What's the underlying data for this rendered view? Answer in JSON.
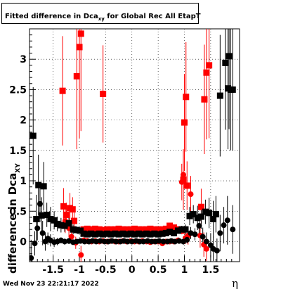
{
  "title": {
    "main": "Fitted difference in Dca",
    "sub": "xy",
    "rest": " for Global Rec All EtapT"
  },
  "timestamp": "Wed Nov 23 22:21:17 2022",
  "xaxis_label": "η",
  "yaxis_label": {
    "main": "difference in Dca",
    "sub": "XY"
  },
  "colors": {
    "red": "#ff0000",
    "black": "#000000",
    "grid": "#000000"
  },
  "chart_data": {
    "type": "scatter",
    "xlim": [
      -1.95,
      2.05
    ],
    "ylim": [
      -0.33,
      3.5
    ],
    "grid": true,
    "x_ticks": [
      "-1.5",
      "-1",
      "-0.5",
      "0",
      "0.5",
      "1",
      "1.5"
    ],
    "x_tick_values": [
      -1.5,
      -1,
      -0.5,
      0,
      0.5,
      1,
      1.5
    ],
    "y_ticks": [
      "0",
      "0.5",
      "1",
      "1.5",
      "2",
      "2.5",
      "3"
    ],
    "y_tick_values": [
      0,
      0.5,
      1,
      1.5,
      2,
      2.5,
      3
    ],
    "series": [
      {
        "color": "red",
        "marker": "square",
        "points": [
          [
            -1.32,
            2.48,
            0.9
          ],
          [
            -1.3,
            0.58,
            0.3
          ],
          [
            -1.25,
            0.44,
            0.2
          ],
          [
            -1.18,
            0.55,
            0.25
          ],
          [
            -1.13,
            0.53,
            0.2
          ],
          [
            -1.1,
            0.34,
            0.15
          ],
          [
            -1.05,
            2.72,
            1.2
          ],
          [
            -1.0,
            3.2,
            1.5
          ],
          [
            -0.97,
            3.42,
            1.6
          ],
          [
            -0.55,
            2.43,
            0.8
          ],
          [
            -0.92,
            0.2,
            0.05
          ],
          [
            -0.85,
            0.21,
            0.05
          ],
          [
            -0.78,
            0.2,
            0.04
          ],
          [
            -0.7,
            0.21,
            0.04
          ],
          [
            -0.62,
            0.2,
            0.04
          ],
          [
            -0.55,
            0.19,
            0.04
          ],
          [
            -0.47,
            0.2,
            0.04
          ],
          [
            -0.4,
            0.2,
            0.04
          ],
          [
            -0.32,
            0.2,
            0.04
          ],
          [
            -0.25,
            0.21,
            0.04
          ],
          [
            -0.17,
            0.2,
            0.04
          ],
          [
            -0.1,
            0.2,
            0.04
          ],
          [
            -0.02,
            0.2,
            0.04
          ],
          [
            0.05,
            0.21,
            0.04
          ],
          [
            0.13,
            0.2,
            0.04
          ],
          [
            0.2,
            0.2,
            0.04
          ],
          [
            0.28,
            0.2,
            0.04
          ],
          [
            0.35,
            0.21,
            0.04
          ],
          [
            0.43,
            0.2,
            0.04
          ],
          [
            0.5,
            0.2,
            0.04
          ],
          [
            0.58,
            0.2,
            0.04
          ],
          [
            0.65,
            0.21,
            0.04
          ],
          [
            0.72,
            0.26,
            0.05
          ],
          [
            0.8,
            0.23,
            0.05
          ],
          [
            0.88,
            0.2,
            0.05
          ],
          [
            0.95,
            0.18,
            0.06
          ],
          [
            0.98,
            1.02,
            0.5
          ],
          [
            1.0,
            1.96,
            0.8
          ],
          [
            1.03,
            2.38,
            0.9
          ],
          [
            1.05,
            0.92,
            0.4
          ],
          [
            1.32,
            0.57,
            0.3
          ],
          [
            1.38,
            2.34,
            0.9
          ],
          [
            1.42,
            2.78,
            1.1
          ],
          [
            1.47,
            2.9,
            1.2
          ]
        ]
      },
      {
        "color": "red",
        "marker": "circle",
        "points": [
          [
            -1.27,
            0.34,
            0.2
          ],
          [
            -1.2,
            0.22,
            0.15
          ],
          [
            -1.15,
            0.08,
            0.1
          ],
          [
            -1.07,
            -0.02,
            0.1
          ],
          [
            -0.97,
            -0.22,
            0.15
          ],
          [
            -0.92,
            0.02,
            0.05
          ],
          [
            -0.85,
            0.01,
            0.05
          ],
          [
            -0.77,
            0.0,
            0.04
          ],
          [
            -0.7,
            0.01,
            0.04
          ],
          [
            -0.62,
            0.0,
            0.04
          ],
          [
            -0.55,
            0.01,
            0.04
          ],
          [
            -0.47,
            0.0,
            0.04
          ],
          [
            -0.4,
            0.01,
            0.04
          ],
          [
            -0.32,
            0.0,
            0.04
          ],
          [
            -0.25,
            0.0,
            0.04
          ],
          [
            -0.17,
            0.01,
            0.04
          ],
          [
            -0.1,
            0.0,
            0.04
          ],
          [
            -0.02,
            0.01,
            0.04
          ],
          [
            0.05,
            0.0,
            0.04
          ],
          [
            0.13,
            0.0,
            0.04
          ],
          [
            0.2,
            0.01,
            0.04
          ],
          [
            0.28,
            0.0,
            0.04
          ],
          [
            0.35,
            -0.01,
            0.04
          ],
          [
            0.43,
            0.0,
            0.04
          ],
          [
            0.5,
            0.0,
            0.04
          ],
          [
            0.58,
            -0.03,
            0.04
          ],
          [
            0.65,
            0.0,
            0.04
          ],
          [
            0.72,
            0.0,
            0.04
          ],
          [
            0.8,
            0.0,
            0.04
          ],
          [
            0.88,
            0.02,
            0.05
          ],
          [
            0.95,
            0.98,
            0.3
          ],
          [
            0.98,
            1.1,
            0.4
          ],
          [
            1.02,
            0.06,
            0.1
          ],
          [
            1.07,
            0.1,
            0.15
          ],
          [
            1.12,
            0.78,
            0.3
          ],
          [
            1.3,
            0.1,
            0.2
          ],
          [
            1.37,
            -0.05,
            0.2
          ],
          [
            1.42,
            -0.12,
            0.2
          ]
        ]
      },
      {
        "color": "black",
        "marker": "square",
        "points": [
          [
            -1.88,
            1.74,
            0.8
          ],
          [
            -1.82,
            0.37,
            0.4
          ],
          [
            -1.78,
            0.93,
            0.5
          ],
          [
            -1.72,
            0.43,
            0.3
          ],
          [
            -1.68,
            0.91,
            0.4
          ],
          [
            -1.62,
            0.44,
            0.2
          ],
          [
            -1.55,
            0.37,
            0.2
          ],
          [
            -1.48,
            0.35,
            0.15
          ],
          [
            -1.42,
            0.29,
            0.12
          ],
          [
            -1.35,
            0.27,
            0.12
          ],
          [
            -1.28,
            0.26,
            0.1
          ],
          [
            -1.2,
            0.3,
            0.1
          ],
          [
            -1.12,
            0.2,
            0.08
          ],
          [
            -1.05,
            0.19,
            0.06
          ],
          [
            -0.98,
            0.18,
            0.05
          ],
          [
            -0.92,
            0.13,
            0.05
          ],
          [
            -0.85,
            0.12,
            0.05
          ],
          [
            -0.78,
            0.13,
            0.04
          ],
          [
            -0.7,
            0.12,
            0.04
          ],
          [
            -0.62,
            0.13,
            0.04
          ],
          [
            -0.55,
            0.12,
            0.04
          ],
          [
            -0.47,
            0.13,
            0.04
          ],
          [
            -0.4,
            0.12,
            0.04
          ],
          [
            -0.32,
            0.13,
            0.04
          ],
          [
            -0.25,
            0.12,
            0.04
          ],
          [
            -0.17,
            0.13,
            0.04
          ],
          [
            -0.1,
            0.12,
            0.04
          ],
          [
            -0.02,
            0.13,
            0.04
          ],
          [
            0.05,
            0.12,
            0.04
          ],
          [
            0.13,
            0.13,
            0.04
          ],
          [
            0.2,
            0.12,
            0.04
          ],
          [
            0.28,
            0.13,
            0.04
          ],
          [
            0.35,
            0.12,
            0.04
          ],
          [
            0.43,
            0.13,
            0.04
          ],
          [
            0.5,
            0.12,
            0.04
          ],
          [
            0.58,
            0.13,
            0.04
          ],
          [
            0.65,
            0.14,
            0.04
          ],
          [
            0.72,
            0.16,
            0.05
          ],
          [
            0.8,
            0.14,
            0.05
          ],
          [
            0.88,
            0.18,
            0.05
          ],
          [
            0.95,
            0.2,
            0.06
          ],
          [
            1.02,
            0.2,
            0.08
          ],
          [
            1.1,
            0.42,
            0.15
          ],
          [
            1.17,
            0.45,
            0.15
          ],
          [
            1.25,
            0.39,
            0.2
          ],
          [
            1.32,
            0.41,
            0.2
          ],
          [
            1.4,
            0.49,
            0.2
          ],
          [
            1.47,
            0.47,
            0.25
          ],
          [
            1.55,
            0.37,
            0.3
          ],
          [
            1.6,
            0.45,
            0.3
          ],
          [
            1.68,
            2.4,
            1.0
          ],
          [
            1.78,
            2.94,
            1.1
          ],
          [
            1.83,
            2.52,
            1.0
          ],
          [
            1.88,
            2.5,
            1.0
          ],
          [
            1.85,
            3.05,
            1.2
          ],
          [
            1.92,
            2.5,
            1.0
          ]
        ]
      },
      {
        "color": "black",
        "marker": "circle",
        "points": [
          [
            -1.92,
            -0.27,
            0.3
          ],
          [
            -1.85,
            -0.03,
            0.2
          ],
          [
            -1.8,
            0.22,
            0.2
          ],
          [
            -1.75,
            0.62,
            0.3
          ],
          [
            -1.7,
            0.14,
            0.2
          ],
          [
            -1.65,
            0.0,
            0.15
          ],
          [
            -1.6,
            0.05,
            0.1
          ],
          [
            -1.55,
            0.02,
            0.1
          ],
          [
            -1.48,
            -0.01,
            0.08
          ],
          [
            -1.42,
            0.0,
            0.06
          ],
          [
            -1.35,
            0.02,
            0.05
          ],
          [
            -1.28,
            0.0,
            0.05
          ],
          [
            -1.2,
            0.01,
            0.05
          ],
          [
            -1.12,
            -0.01,
            0.04
          ],
          [
            -1.05,
            0.0,
            0.04
          ],
          [
            -0.98,
            0.01,
            0.04
          ],
          [
            -0.9,
            0.0,
            0.03
          ],
          [
            -0.82,
            0.0,
            0.03
          ],
          [
            -0.75,
            0.01,
            0.03
          ],
          [
            -0.68,
            0.0,
            0.03
          ],
          [
            -0.6,
            0.01,
            0.03
          ],
          [
            -0.52,
            0.0,
            0.03
          ],
          [
            -0.45,
            0.0,
            0.03
          ],
          [
            -0.38,
            0.01,
            0.03
          ],
          [
            -0.3,
            0.0,
            0.03
          ],
          [
            -0.22,
            0.0,
            0.03
          ],
          [
            -0.15,
            0.01,
            0.03
          ],
          [
            -0.08,
            0.0,
            0.03
          ],
          [
            0.0,
            0.0,
            0.03
          ],
          [
            0.08,
            0.01,
            0.03
          ],
          [
            0.15,
            0.0,
            0.03
          ],
          [
            0.22,
            0.0,
            0.03
          ],
          [
            0.3,
            0.01,
            0.03
          ],
          [
            0.38,
            0.0,
            0.03
          ],
          [
            0.45,
            0.0,
            0.03
          ],
          [
            0.52,
            0.01,
            0.03
          ],
          [
            0.6,
            0.0,
            0.03
          ],
          [
            0.68,
            0.0,
            0.03
          ],
          [
            0.75,
            0.01,
            0.03
          ],
          [
            0.82,
            0.0,
            0.03
          ],
          [
            0.9,
            0.01,
            0.04
          ],
          [
            0.98,
            0.0,
            0.05
          ],
          [
            1.05,
            0.03,
            0.06
          ],
          [
            1.12,
            0.14,
            0.1
          ],
          [
            1.2,
            0.12,
            0.1
          ],
          [
            1.28,
            0.26,
            0.15
          ],
          [
            1.35,
            0.08,
            0.15
          ],
          [
            1.42,
            0.0,
            0.15
          ],
          [
            1.5,
            -0.06,
            0.2
          ],
          [
            1.55,
            -0.12,
            0.2
          ],
          [
            1.62,
            -0.15,
            0.2
          ],
          [
            1.68,
            0.14,
            0.3
          ],
          [
            1.75,
            0.27,
            0.3
          ],
          [
            1.82,
            0.35,
            0.4
          ],
          [
            1.92,
            0.2,
            0.4
          ]
        ]
      }
    ]
  }
}
